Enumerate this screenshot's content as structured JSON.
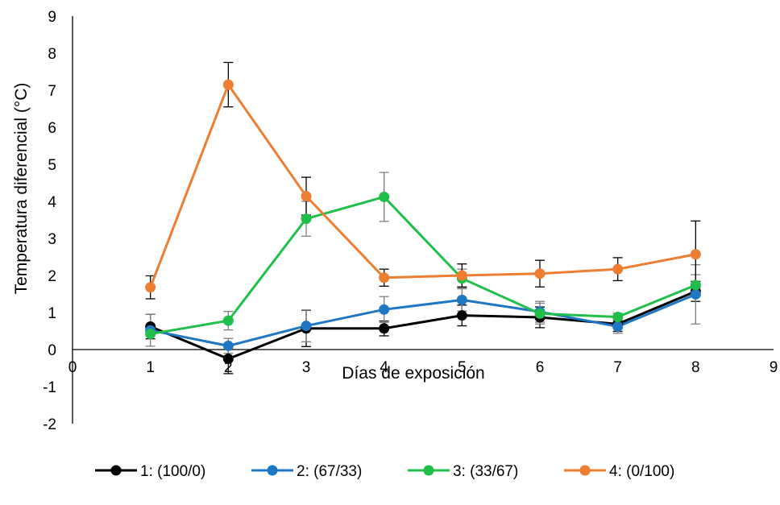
{
  "chart_data": {
    "type": "scatter",
    "title": "",
    "xlabel": "Días de exposición",
    "ylabel": "Temperatura diferencial (°C)",
    "xlim": [
      0,
      9
    ],
    "ylim": [
      -2,
      9
    ],
    "x_ticks": [
      "0",
      "1",
      "2",
      "3",
      "4",
      "5",
      "6",
      "7",
      "8",
      "9"
    ],
    "y_ticks": [
      "-2",
      "-1",
      "0",
      "1",
      "2",
      "3",
      "4",
      "5",
      "6",
      "7",
      "8",
      "9"
    ],
    "grid": false,
    "legend_position": "bottom",
    "series": [
      {
        "name": "1: (100/0)",
        "color": "#000000",
        "error_bar_color": "#000000",
        "x": [
          1,
          2,
          3,
          4,
          5,
          6,
          7,
          8
        ],
        "y": [
          0.62,
          -0.25,
          0.57,
          0.57,
          0.92,
          0.87,
          0.69,
          1.57
        ],
        "error": [
          0.33,
          0.4,
          0.49,
          0.2,
          0.28,
          0.28,
          0.2,
          0.27
        ]
      },
      {
        "name": "2: (67/33)",
        "color": "#1f77c4",
        "error_bar_color": "#7f7f7f",
        "x": [
          1,
          2,
          3,
          4,
          5,
          6,
          7,
          8
        ],
        "y": [
          0.52,
          0.1,
          0.64,
          1.08,
          1.34,
          1.02,
          0.62,
          1.49
        ],
        "error": [
          0.43,
          0.2,
          0.43,
          0.35,
          0.3,
          0.28,
          0.18,
          0.8
        ]
      },
      {
        "name": "3: (33/67)",
        "color": "#1fbf4a",
        "error_bar_color": "#7f7f7f",
        "x": [
          1,
          2,
          3,
          4,
          5,
          6,
          7,
          8
        ],
        "y": [
          0.42,
          0.78,
          3.53,
          4.12,
          1.92,
          0.97,
          0.88,
          1.74
        ],
        "error": [
          0.06,
          0.25,
          0.47,
          0.66,
          0.25,
          0.28,
          0.1,
          0.28
        ]
      },
      {
        "name": "4: (0/100)",
        "color": "#ed7d31",
        "error_bar_color": "#000000",
        "x": [
          1,
          2,
          3,
          4,
          5,
          6,
          7,
          8
        ],
        "y": [
          1.68,
          7.15,
          4.14,
          1.94,
          2.0,
          2.05,
          2.17,
          2.57
        ],
        "error": [
          0.31,
          0.6,
          0.51,
          0.23,
          0.31,
          0.36,
          0.31,
          0.9
        ]
      }
    ]
  }
}
